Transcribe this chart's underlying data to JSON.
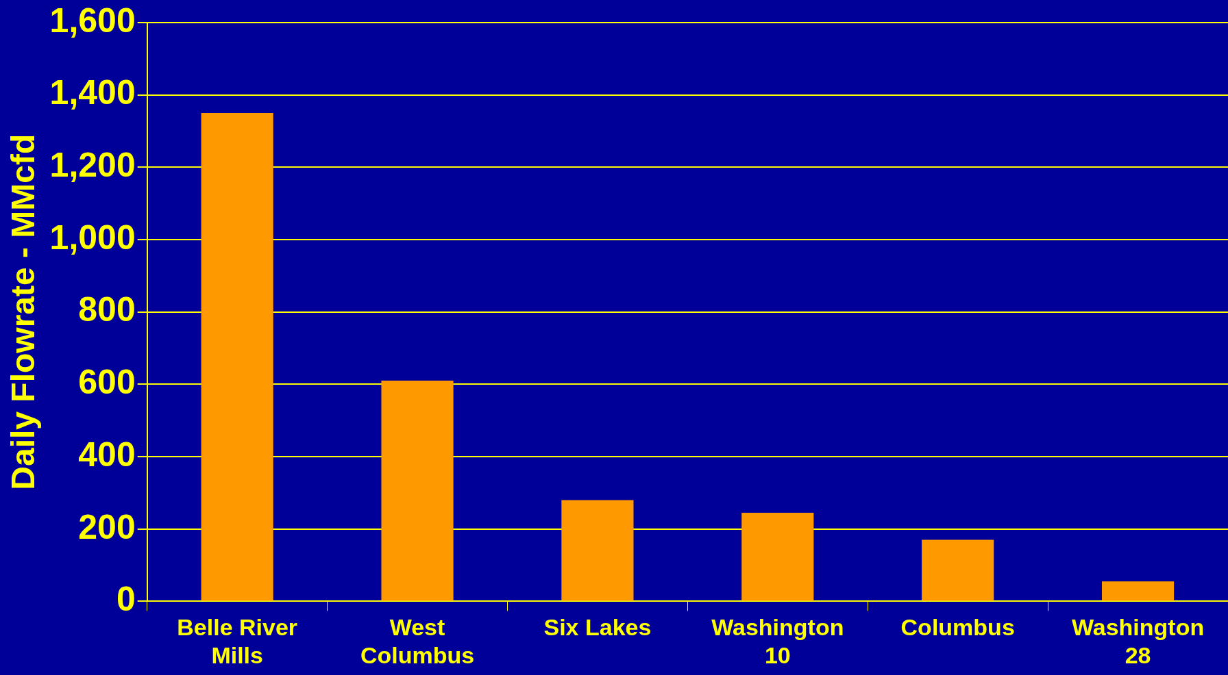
{
  "chart_data": {
    "type": "bar",
    "ylabel": "Daily Flowrate - MMcfd",
    "categories": [
      "Belle River Mills",
      "West Columbus",
      "Six Lakes",
      "Washington 10",
      "Columbus",
      "Washington 28"
    ],
    "values": [
      1350,
      610,
      280,
      245,
      170,
      55
    ],
    "color": "#ff9900",
    "ylim": [
      0,
      1600
    ],
    "yticks": [
      0,
      200,
      400,
      600,
      800,
      {
        "value": 1000,
        "label": "1,000"
      },
      {
        "value": 1200,
        "label": "1,200"
      },
      {
        "value": 1400,
        "label": "1,400"
      },
      {
        "value": 1600,
        "label": "1,600"
      }
    ],
    "grid": "y",
    "legend": false
  }
}
